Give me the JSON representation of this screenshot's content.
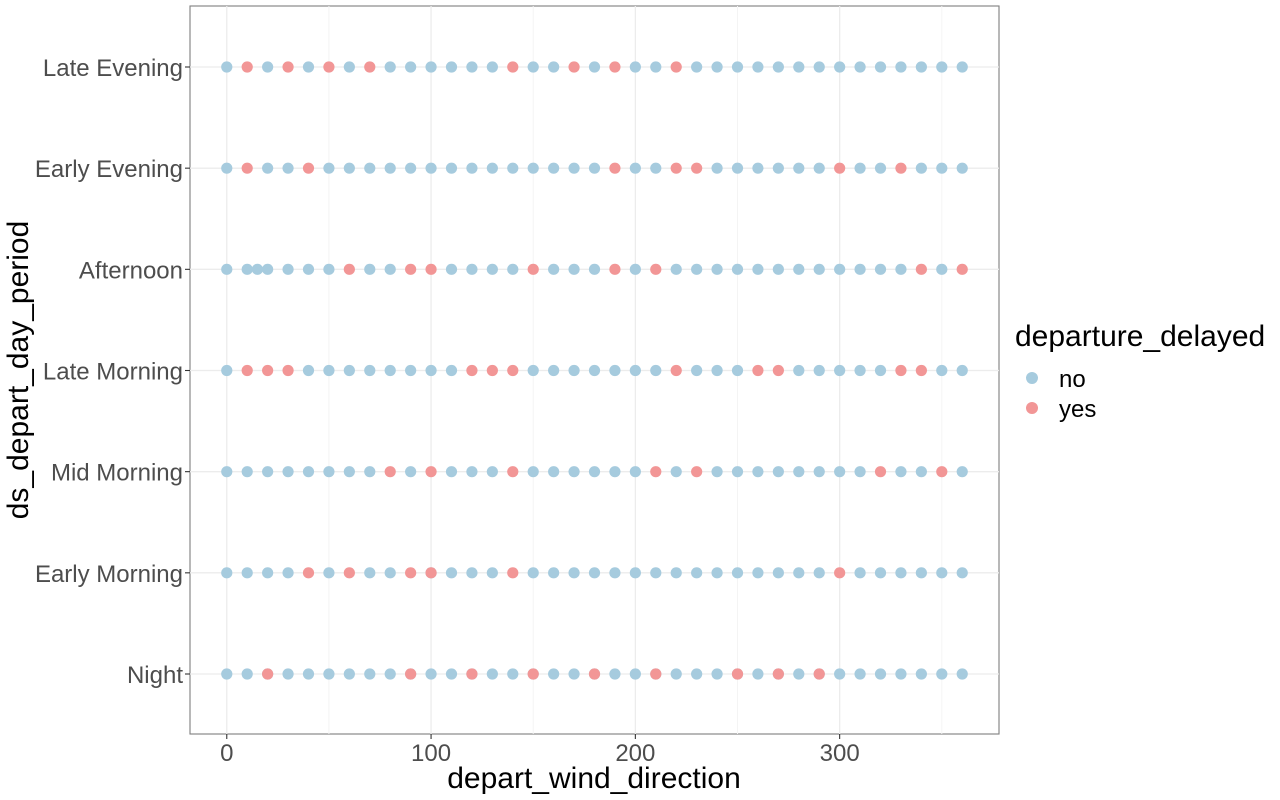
{
  "chart_data": {
    "type": "scatter",
    "xlabel": "depart_wind_direction",
    "ylabel": "ds_depart_day_period",
    "xlim": [
      -18,
      378
    ],
    "x_ticks": [
      0,
      100,
      200,
      300
    ],
    "x_tick_labels": [
      "0",
      "100",
      "200",
      "300"
    ],
    "categories": [
      "Night",
      "Early Morning",
      "Mid Morning",
      "Late Morning",
      "Afternoon",
      "Early Evening",
      "Late Evening"
    ],
    "grid": true,
    "background": "white",
    "legend": {
      "title": "departure_delayed",
      "position": "right",
      "entries": [
        {
          "label": "no",
          "color": "#a6cbde"
        },
        {
          "label": "yes",
          "color": "#f29696"
        }
      ]
    },
    "x_values": [
      0,
      10,
      20,
      30,
      40,
      50,
      60,
      70,
      80,
      90,
      100,
      110,
      120,
      130,
      140,
      150,
      160,
      170,
      180,
      190,
      200,
      210,
      220,
      230,
      240,
      250,
      260,
      270,
      280,
      290,
      300,
      310,
      320,
      330,
      340,
      350,
      360
    ],
    "series": [
      {
        "name": "no",
        "color": "#a6cbde",
        "points": {
          "Night": [
            0,
            10,
            20,
            30,
            40,
            50,
            60,
            70,
            80,
            90,
            100,
            110,
            120,
            130,
            140,
            150,
            160,
            170,
            180,
            190,
            200,
            210,
            220,
            230,
            240,
            250,
            260,
            270,
            280,
            290,
            300,
            310,
            320,
            330,
            340,
            350,
            360
          ],
          "Early Morning": [
            0,
            10,
            20,
            30,
            50,
            70,
            80,
            100,
            110,
            120,
            130,
            150,
            160,
            170,
            180,
            190,
            200,
            210,
            220,
            230,
            240,
            250,
            260,
            270,
            280,
            290,
            310,
            320,
            330,
            340,
            350,
            360
          ],
          "Mid Morning": [
            0,
            10,
            20,
            30,
            40,
            50,
            60,
            70,
            90,
            110,
            120,
            130,
            150,
            160,
            170,
            180,
            190,
            200,
            220,
            240,
            250,
            260,
            270,
            280,
            290,
            300,
            310,
            330,
            340,
            360
          ],
          "Late Morning": [
            0,
            40,
            50,
            60,
            70,
            80,
            90,
            100,
            110,
            150,
            160,
            170,
            180,
            190,
            200,
            210,
            230,
            240,
            250,
            280,
            290,
            300,
            310,
            320,
            350,
            360
          ],
          "Afternoon": [
            0,
            10,
            15,
            20,
            30,
            40,
            50,
            70,
            80,
            110,
            120,
            130,
            140,
            160,
            170,
            180,
            200,
            220,
            230,
            240,
            250,
            260,
            270,
            280,
            290,
            300,
            310,
            320,
            330,
            350
          ],
          "Early Evening": [
            0,
            20,
            30,
            50,
            60,
            70,
            80,
            90,
            100,
            110,
            120,
            130,
            140,
            150,
            160,
            170,
            180,
            200,
            210,
            240,
            250,
            260,
            270,
            280,
            290,
            310,
            320,
            340,
            350,
            360
          ],
          "Late Evening": [
            0,
            20,
            40,
            60,
            80,
            90,
            100,
            110,
            120,
            130,
            150,
            160,
            180,
            200,
            210,
            230,
            240,
            250,
            260,
            270,
            280,
            290,
            300,
            310,
            320,
            330,
            340,
            350,
            360
          ]
        }
      },
      {
        "name": "yes",
        "color": "#f29696",
        "points": {
          "Night": [
            20,
            90,
            120,
            150,
            180,
            210,
            250,
            270,
            290
          ],
          "Early Morning": [
            40,
            60,
            90,
            100,
            140,
            300
          ],
          "Mid Morning": [
            80,
            100,
            140,
            210,
            230,
            320,
            350
          ],
          "Late Morning": [
            10,
            20,
            30,
            120,
            130,
            140,
            220,
            260,
            270,
            330,
            340
          ],
          "Afternoon": [
            60,
            90,
            100,
            150,
            190,
            210,
            340,
            360
          ],
          "Early Evening": [
            10,
            40,
            190,
            220,
            230,
            300,
            330
          ],
          "Late Evening": [
            10,
            30,
            50,
            70,
            140,
            170,
            190,
            220
          ]
        }
      }
    ]
  }
}
